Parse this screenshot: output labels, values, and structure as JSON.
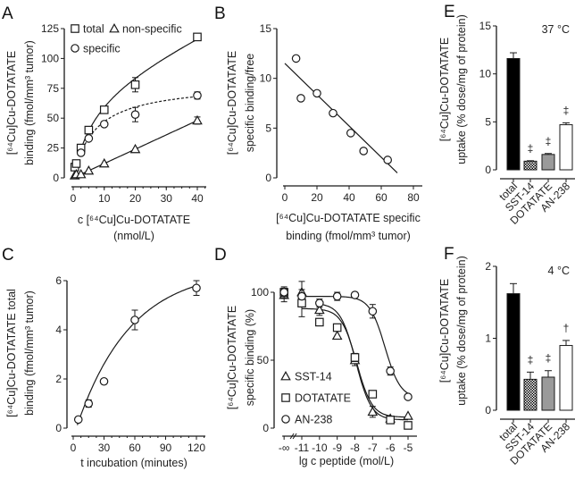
{
  "colors": {
    "ink": "#1a1a1a",
    "bar_total": "#000000",
    "bar_dotatate": "#9a9a9a",
    "bar_an238": "#ffffff",
    "bar_sst14": "checkered"
  },
  "chart_data": [
    {
      "panel": "A",
      "type": "scatter",
      "xlabel": [
        "c [⁶⁴Cu]Cu-DOTATATE",
        "(nmol/L)"
      ],
      "ylabel": [
        "[⁶⁴Cu]Cu-DOTATATE",
        "binding (fmol/mm³ tumor)"
      ],
      "xlim": [
        0,
        40
      ],
      "ylim": [
        0,
        125
      ],
      "xticks": [
        "0",
        "10",
        "20",
        "30",
        "40"
      ],
      "yticks": [
        "0",
        "25",
        "50",
        "75",
        "100",
        "125"
      ],
      "legend": [
        "total",
        "non-specific",
        "specific"
      ],
      "series": [
        {
          "name": "total",
          "marker": "square",
          "line": "solid",
          "x": [
            0.5,
            1,
            2.5,
            5,
            10,
            20,
            40
          ],
          "y": [
            9,
            12,
            25,
            40,
            57,
            78,
            118
          ],
          "err": [
            0,
            0,
            0,
            0,
            0,
            6,
            2
          ]
        },
        {
          "name": "specific",
          "marker": "circle",
          "line": "dashed",
          "x": [
            2.5,
            5,
            10,
            20,
            40
          ],
          "y": [
            21,
            33,
            45,
            53,
            69
          ],
          "err": [
            0,
            0,
            0,
            6,
            3
          ]
        },
        {
          "name": "non-specific",
          "marker": "triangle",
          "line": "solid",
          "x": [
            0.5,
            1,
            2.5,
            5,
            10,
            20,
            40
          ],
          "y": [
            2,
            3,
            3,
            6,
            12,
            24,
            48
          ],
          "err": [
            0,
            0,
            0,
            0,
            0,
            0,
            3
          ]
        }
      ]
    },
    {
      "panel": "B",
      "type": "scatter",
      "xlabel": [
        "[⁶⁴Cu]Cu-DOTATATE specific",
        "binding (fmol/mm³ tumor)"
      ],
      "ylabel": [
        "[⁶⁴Cu]Cu-DOTATATE",
        "specific binding/free"
      ],
      "xlim": [
        0,
        80
      ],
      "ylim": [
        0,
        15
      ],
      "xticks": [
        "0",
        "20",
        "40",
        "60",
        "80"
      ],
      "yticks": [
        "0",
        "5",
        "10",
        "15"
      ],
      "series": [
        {
          "marker": "circle",
          "x": [
            7,
            10,
            20,
            30,
            41,
            49,
            64
          ],
          "y": [
            12,
            8,
            8.5,
            6.5,
            4.5,
            2.7,
            1.8
          ]
        }
      ],
      "fit_line": {
        "x": [
          0,
          70
        ],
        "y": [
          11.5,
          0.5
        ]
      }
    },
    {
      "panel": "C",
      "type": "scatter",
      "xlabel": [
        "t  incubation (minutes)"
      ],
      "ylabel": [
        "[⁶⁴Cu]Cu-DOTATATE total",
        "binding (fmol/mm³ tumor)"
      ],
      "xlim": [
        0,
        120
      ],
      "ylim": [
        0,
        6
      ],
      "xticks": [
        "0",
        "30",
        "60",
        "90",
        "120"
      ],
      "yticks": [
        "0",
        "2",
        "4",
        "6"
      ],
      "series": [
        {
          "marker": "circle",
          "x": [
            5,
            15,
            30,
            60,
            120
          ],
          "y": [
            0.35,
            1.0,
            1.9,
            4.4,
            5.7
          ],
          "err": [
            0,
            0.15,
            0,
            0.4,
            0.3
          ]
        }
      ]
    },
    {
      "panel": "D",
      "type": "scatter",
      "xlabel": [
        "lg c peptide (mol/L)"
      ],
      "ylabel": [
        "[⁶⁴Cu]Cu-DOTATATE",
        "specific binding (%)"
      ],
      "ylim": [
        0,
        100
      ],
      "xticks": [
        "-∞",
        "-11",
        "-10",
        "-9",
        "-8",
        "-7",
        "-6",
        "-5"
      ],
      "yticks": [
        "0",
        "50",
        "100"
      ],
      "legend": [
        "SST-14",
        "DOTATATE",
        "AN-238"
      ],
      "series": [
        {
          "name": "SST-14",
          "marker": "triangle",
          "x": [
            "-∞",
            -11,
            -10,
            -9,
            -8,
            -7,
            -6,
            -5
          ],
          "y": [
            98,
            100,
            87,
            68,
            50,
            12,
            7,
            9
          ],
          "err": [
            5,
            8,
            4,
            0,
            4,
            4,
            0,
            0
          ]
        },
        {
          "name": "DOTATATE",
          "marker": "square",
          "x": [
            "-∞",
            -11,
            -10,
            -9,
            -8,
            -7,
            -6,
            -5
          ],
          "y": [
            100,
            92,
            78,
            74,
            52,
            25,
            6,
            2
          ],
          "err": [
            4,
            10,
            0,
            0,
            3,
            0,
            0,
            0
          ]
        },
        {
          "name": "AN-238",
          "marker": "circle",
          "x": [
            "-∞",
            -11,
            -10,
            -9,
            -8,
            -7,
            -6,
            -5
          ],
          "y": [
            100,
            97,
            92,
            97,
            98,
            86,
            42,
            23
          ],
          "err": [
            3,
            0,
            3,
            3,
            0,
            5,
            3,
            0
          ]
        }
      ]
    },
    {
      "panel": "E",
      "type": "bar",
      "annotation": "37 °C",
      "ylabel": [
        "[⁶⁴Cu]Cu-DOTATATE",
        "uptake (% dose/mg of protein)"
      ],
      "ylim": [
        0,
        15
      ],
      "yticks": [
        "0",
        "5",
        "10",
        "15"
      ],
      "categories": [
        "total",
        "SST-14",
        "DOTATATE",
        "AN-238"
      ],
      "values": [
        11.6,
        0.9,
        1.6,
        4.7
      ],
      "err": [
        0.6,
        0.05,
        0.1,
        0.2
      ],
      "significance": [
        "",
        "‡",
        "‡",
        "‡"
      ]
    },
    {
      "panel": "F",
      "type": "bar",
      "annotation": "4 °C",
      "ylabel": [
        "[⁶⁴Cu]Cu-DOTATATE",
        "uptake (% dose/mg of protein)"
      ],
      "ylim": [
        0,
        2
      ],
      "yticks": [
        "0",
        "1",
        "2"
      ],
      "categories": [
        "total",
        "SST-14",
        "DOTATATE",
        "AN-238"
      ],
      "values": [
        1.62,
        0.43,
        0.46,
        0.9
      ],
      "err": [
        0.14,
        0.1,
        0.09,
        0.07
      ],
      "significance": [
        "",
        "‡",
        "‡",
        "†"
      ]
    }
  ]
}
